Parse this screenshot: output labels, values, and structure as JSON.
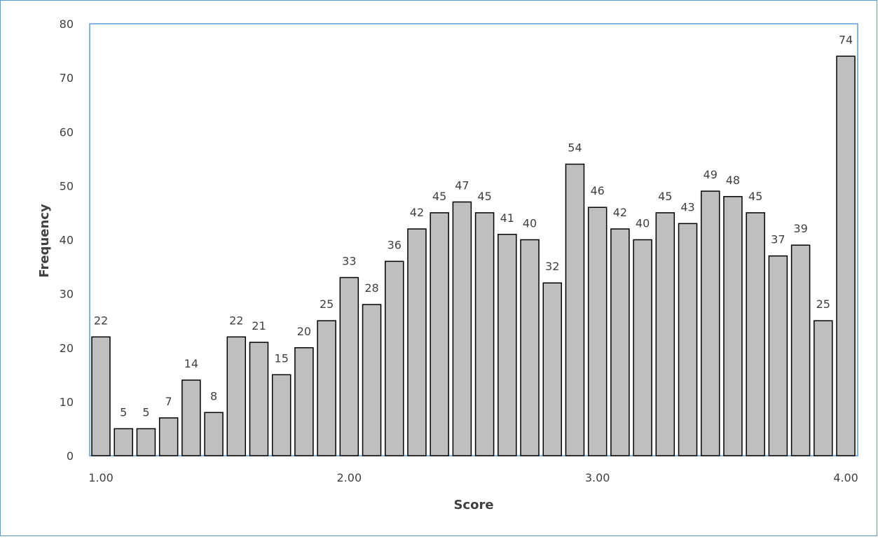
{
  "chart_data": {
    "type": "bar",
    "title": "",
    "xlabel": "Score",
    "ylabel": "Frequency",
    "ylim": [
      0,
      80
    ],
    "yticks": [
      "0",
      "10",
      "20",
      "30",
      "40",
      "50",
      "60",
      "70",
      "80"
    ],
    "xlim": [
      1.0,
      4.0
    ],
    "xticks": [
      "1.00",
      "2.00",
      "3.00",
      "4.00"
    ],
    "grid": false,
    "legend": "none",
    "bar_color": "#bfbfbf",
    "bar_edge_color": "#000000",
    "plot_border_color": "#5b9bd5",
    "x": [
      1.0,
      1.09,
      1.18,
      1.27,
      1.36,
      1.45,
      1.55,
      1.64,
      1.73,
      1.82,
      1.91,
      2.0,
      2.09,
      2.18,
      2.27,
      2.36,
      2.45,
      2.55,
      2.64,
      2.73,
      2.82,
      2.91,
      3.0,
      3.09,
      3.18,
      3.27,
      3.36,
      3.45,
      3.55,
      3.64,
      3.73,
      3.82,
      3.91,
      4.0
    ],
    "values": [
      22,
      5,
      5,
      7,
      14,
      8,
      22,
      21,
      15,
      20,
      25,
      33,
      28,
      36,
      42,
      45,
      47,
      45,
      41,
      40,
      32,
      54,
      46,
      42,
      40,
      45,
      43,
      49,
      48,
      45,
      37,
      39,
      25,
      74
    ],
    "data_labels": [
      "22",
      "5",
      "5",
      "7",
      "14",
      "8",
      "22",
      "21",
      "15",
      "20",
      "25",
      "33",
      "28",
      "36",
      "42",
      "45",
      "47",
      "45",
      "41",
      "40",
      "32",
      "54",
      "46",
      "42",
      "40",
      "45",
      "43",
      "49",
      "48",
      "45",
      "37",
      "39",
      "25",
      "74"
    ]
  }
}
